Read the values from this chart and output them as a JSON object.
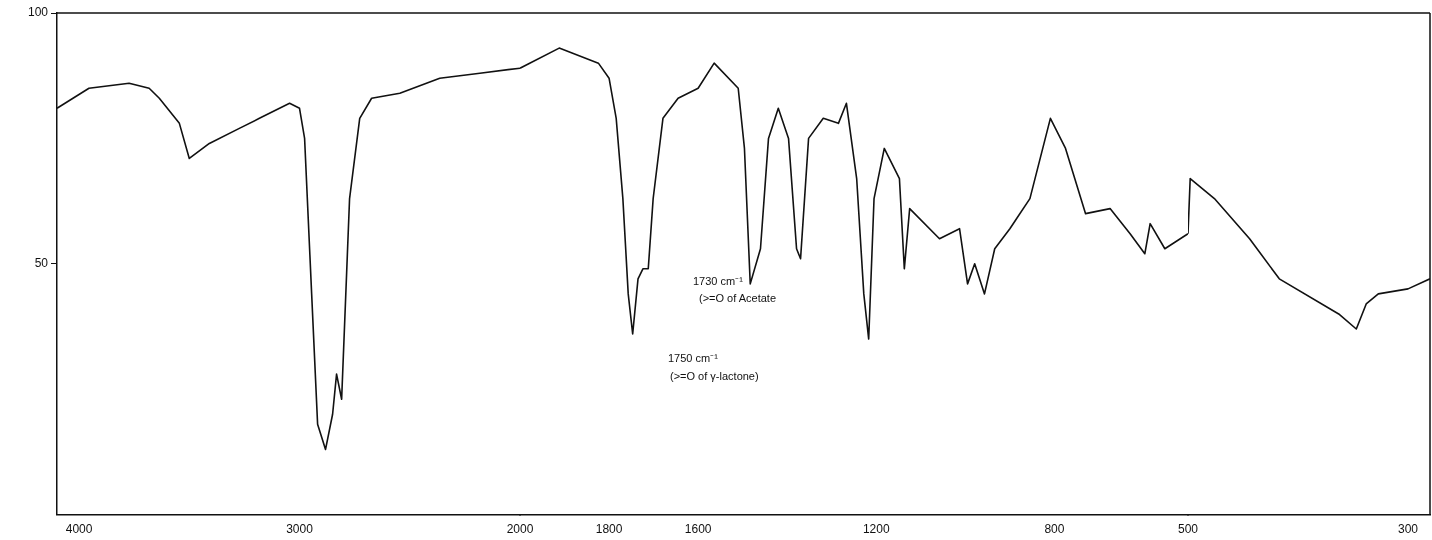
{
  "chart_data": [
    {
      "type": "line",
      "color": "#111111",
      "xlim": [
        4100,
        2000
      ],
      "xticks": [
        4000,
        3000
      ],
      "ylim": [
        0,
        100
      ],
      "yticks": [
        50,
        100
      ],
      "x": [
        4100,
        3955,
        3773,
        3682,
        3636,
        3545,
        3500,
        3409,
        3273,
        3182,
        3045,
        3000,
        2977,
        2945,
        2918,
        2882,
        2850,
        2832,
        2809,
        2773,
        2727,
        2673,
        2545,
        2364,
        2182,
        2000
      ],
      "values": [
        81,
        85,
        86,
        85,
        83,
        78,
        71,
        74,
        77,
        79,
        82,
        81,
        75,
        44,
        18,
        13,
        20,
        28,
        23,
        63,
        79,
        83,
        84,
        87,
        88,
        89
      ]
    },
    {
      "type": "line",
      "color": "#111111",
      "xlim": [
        2000,
        500
      ],
      "xticks": [
        2000,
        1800,
        1600,
        1200,
        800
      ],
      "ylim": [
        0,
        100
      ],
      "tick_labels": "x",
      "x": [
        2000,
        1912,
        1824,
        1800,
        1784,
        1769,
        1757,
        1747,
        1735,
        1724,
        1712,
        1701,
        1679,
        1645,
        1600,
        1564,
        1510,
        1496,
        1483,
        1460,
        1442,
        1420,
        1397,
        1379,
        1370,
        1352,
        1319,
        1285,
        1267,
        1244,
        1228,
        1217,
        1205,
        1182,
        1148,
        1137,
        1125,
        1058,
        1013,
        995,
        979,
        957,
        934,
        900,
        855,
        809,
        775,
        730,
        675,
        630,
        597,
        585,
        552,
        500
      ],
      "values": [
        89,
        93,
        90,
        87,
        79,
        63,
        44,
        36,
        47,
        49,
        49,
        63,
        79,
        83,
        85,
        90,
        85,
        73,
        46,
        53,
        75,
        81,
        75,
        53,
        51,
        75,
        79,
        78,
        82,
        67,
        44,
        35,
        63,
        73,
        67,
        49,
        61,
        55,
        57,
        46,
        50,
        44,
        53,
        57,
        63,
        79,
        73,
        60,
        61,
        56,
        52,
        58,
        53,
        56
      ],
      "annotations": [
        "1730 cm⁻¹",
        "(>=O of Acetate",
        "1750 cm⁻¹",
        "(>=O of γ-lactone)"
      ]
    },
    {
      "type": "line",
      "color": "#111111",
      "xlim": [
        500,
        280
      ],
      "xticks": [
        500,
        300
      ],
      "ylim": [
        0,
        100
      ],
      "tick_labels": "x",
      "x": [
        500,
        498,
        476,
        444,
        417,
        363,
        347,
        338,
        327,
        300,
        280
      ],
      "values": [
        56,
        67,
        63,
        55,
        47,
        40,
        37,
        42,
        44,
        45,
        47
      ]
    }
  ]
}
